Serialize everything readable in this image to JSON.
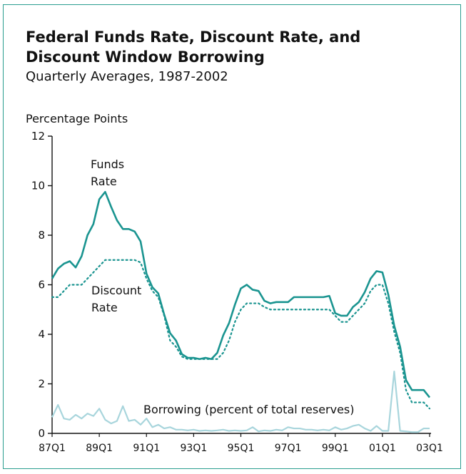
{
  "chart_data": {
    "type": "line",
    "title": "Federal Funds Rate, Discount Rate, and Discount Window Borrowing",
    "subtitle": "Quarterly Averages, 1987-2002",
    "ylabel": "Percentage Points",
    "xlabel": "",
    "ylim": [
      0,
      12
    ],
    "yticks": [
      "0",
      "2",
      "4",
      "6",
      "8",
      "10",
      "12"
    ],
    "xtick_labels": [
      "87Q1",
      "89Q1",
      "91Q1",
      "93Q1",
      "95Q1",
      "97Q1",
      "99Q1",
      "01Q1",
      "03Q1"
    ],
    "xtick_quarters": [
      0,
      8,
      16,
      24,
      32,
      40,
      48,
      56,
      64
    ],
    "grid": false,
    "colors": {
      "funds": "#1a9490",
      "discount": "#1a9490",
      "borrowing": "#a8d5dc",
      "axis": "#111111",
      "frame": "#2a9d8f"
    },
    "series": [
      {
        "name": "Funds Rate",
        "label_lines": [
          "Funds",
          "Rate"
        ],
        "style": "solid",
        "values": [
          6.25,
          6.65,
          6.85,
          6.95,
          6.7,
          7.15,
          8.0,
          8.45,
          9.45,
          9.75,
          9.15,
          8.6,
          8.25,
          8.25,
          8.15,
          7.75,
          6.45,
          5.9,
          5.65,
          4.8,
          4.05,
          3.75,
          3.2,
          3.05,
          3.05,
          3.0,
          3.05,
          3.0,
          3.25,
          3.95,
          4.45,
          5.2,
          5.85,
          6.0,
          5.8,
          5.75,
          5.35,
          5.25,
          5.3,
          5.3,
          5.3,
          5.5,
          5.5,
          5.5,
          5.5,
          5.5,
          5.5,
          5.55,
          4.85,
          4.75,
          4.75,
          5.1,
          5.3,
          5.7,
          6.25,
          6.55,
          6.5,
          5.6,
          4.35,
          3.5,
          2.15,
          1.75,
          1.75,
          1.75,
          1.45
        ]
      },
      {
        "name": "Discount Rate",
        "label_lines": [
          "Discount",
          "Rate"
        ],
        "style": "dotted",
        "values": [
          5.5,
          5.5,
          5.75,
          6.0,
          6.0,
          6.0,
          6.25,
          6.5,
          6.75,
          7.0,
          7.0,
          7.0,
          7.0,
          7.0,
          7.0,
          6.9,
          6.25,
          5.75,
          5.5,
          4.75,
          3.75,
          3.5,
          3.1,
          3.0,
          3.0,
          3.0,
          3.0,
          3.0,
          3.0,
          3.25,
          3.75,
          4.5,
          5.0,
          5.25,
          5.25,
          5.25,
          5.1,
          5.0,
          5.0,
          5.0,
          5.0,
          5.0,
          5.0,
          5.0,
          5.0,
          5.0,
          5.0,
          5.0,
          4.75,
          4.5,
          4.5,
          4.75,
          5.0,
          5.25,
          5.75,
          6.0,
          6.0,
          5.25,
          4.1,
          3.25,
          1.75,
          1.25,
          1.25,
          1.25,
          1.0
        ]
      },
      {
        "name": "Borrowing (percent of total reserves)",
        "style": "solid",
        "values": [
          0.65,
          1.15,
          0.6,
          0.55,
          0.75,
          0.6,
          0.8,
          0.7,
          1.0,
          0.55,
          0.4,
          0.5,
          1.1,
          0.5,
          0.55,
          0.35,
          0.6,
          0.25,
          0.35,
          0.2,
          0.25,
          0.15,
          0.15,
          0.12,
          0.15,
          0.1,
          0.12,
          0.1,
          0.12,
          0.15,
          0.1,
          0.12,
          0.1,
          0.12,
          0.25,
          0.08,
          0.12,
          0.1,
          0.15,
          0.12,
          0.25,
          0.2,
          0.2,
          0.15,
          0.15,
          0.12,
          0.15,
          0.12,
          0.25,
          0.15,
          0.2,
          0.3,
          0.35,
          0.2,
          0.1,
          0.3,
          0.1,
          0.1,
          2.5,
          0.1,
          0.08,
          0.05,
          0.05,
          0.2,
          0.2
        ]
      }
    ]
  }
}
